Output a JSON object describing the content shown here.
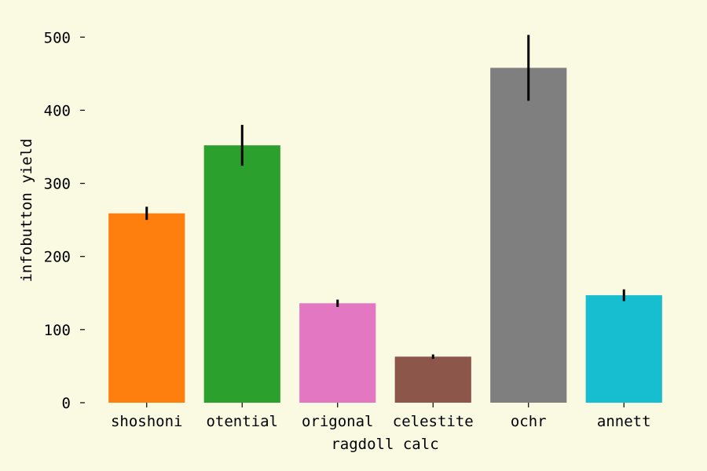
{
  "chart_data": {
    "type": "bar",
    "title": "",
    "xlabel": "ragdoll calc",
    "ylabel": "infobutton yield",
    "categories": [
      "shoshoni",
      "otential",
      "origonal",
      "celestite",
      "ochr",
      "annett"
    ],
    "values": [
      259,
      352,
      136,
      63,
      458,
      147
    ],
    "errors": [
      9,
      28,
      5,
      3,
      45,
      8
    ],
    "colors": [
      "#ff7f0e",
      "#2ca02c",
      "#e377c2",
      "#8c564b",
      "#7f7f7f",
      "#17becf"
    ],
    "yticks": [
      0,
      100,
      200,
      300,
      400,
      500
    ],
    "ylim": [
      0,
      525
    ],
    "grid": false,
    "background": "#fafae3"
  }
}
